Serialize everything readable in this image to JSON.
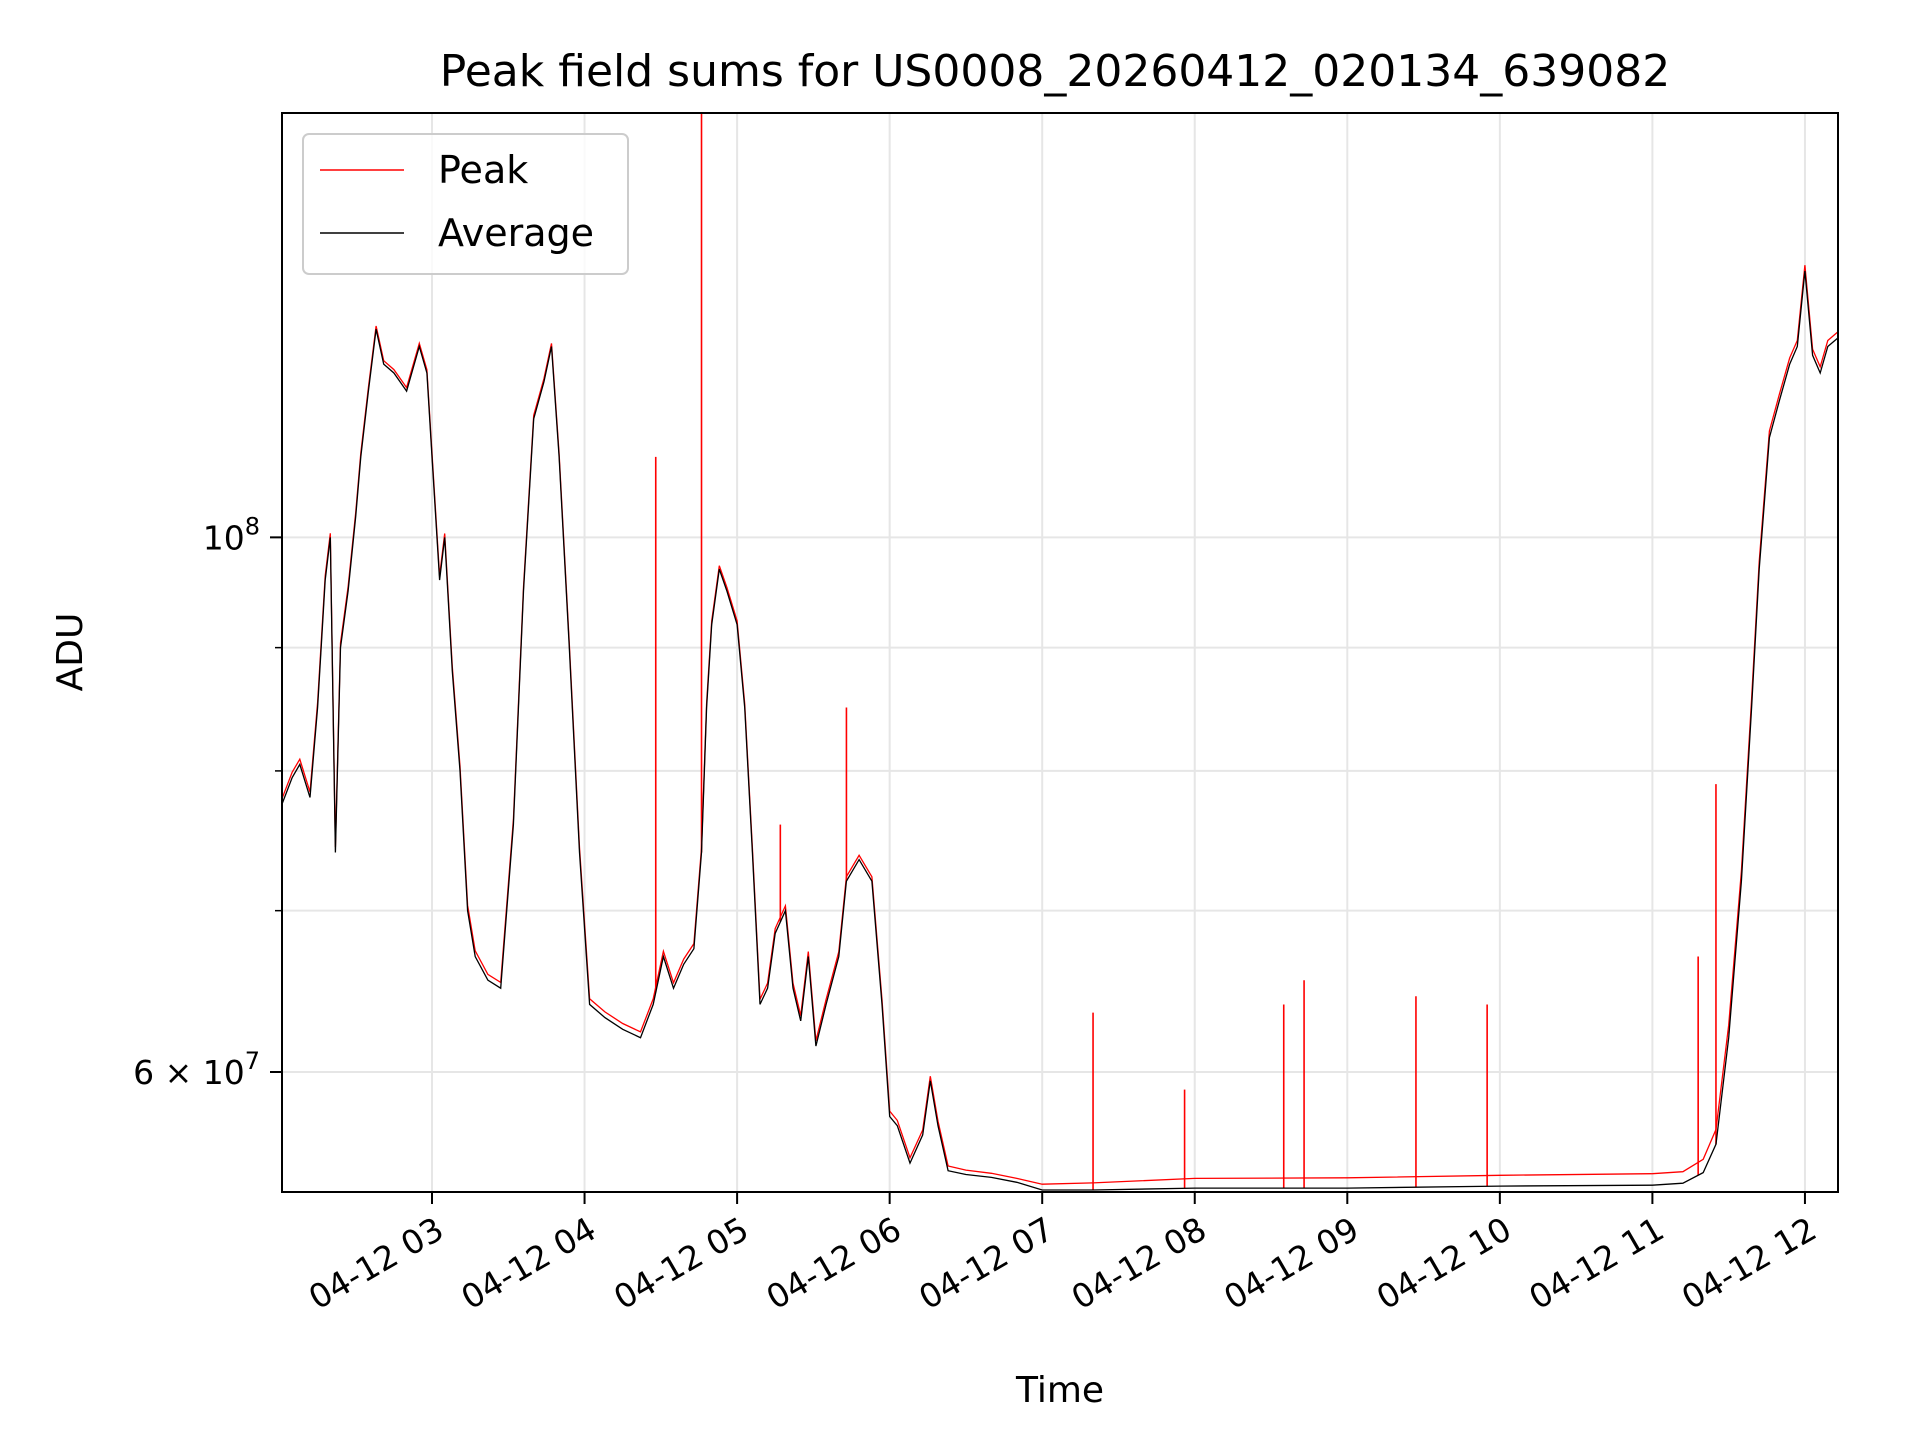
{
  "chart_data": {
    "type": "line",
    "title": "Peak field sums for US0008_20260412_020134_639082",
    "xlabel": "Time",
    "ylabel": "ADU",
    "y_scale": "log",
    "ylim": [
      53500000,
      150000000
    ],
    "xlim": [
      "2026-04-12 02:01",
      "2026-04-12 12:13"
    ],
    "grid": true,
    "legend": {
      "placement": "top-left"
    },
    "x_ticks": [
      {
        "t": "2026-04-12 03:00",
        "label": "04-12 03"
      },
      {
        "t": "2026-04-12 04:00",
        "label": "04-12 04"
      },
      {
        "t": "2026-04-12 05:00",
        "label": "04-12 05"
      },
      {
        "t": "2026-04-12 06:00",
        "label": "04-12 06"
      },
      {
        "t": "2026-04-12 07:00",
        "label": "04-12 07"
      },
      {
        "t": "2026-04-12 08:00",
        "label": "04-12 08"
      },
      {
        "t": "2026-04-12 09:00",
        "label": "04-12 09"
      },
      {
        "t": "2026-04-12 10:00",
        "label": "04-12 10"
      },
      {
        "t": "2026-04-12 11:00",
        "label": "04-12 11"
      },
      {
        "t": "2026-04-12 12:00",
        "label": "04-12 12"
      }
    ],
    "y_major_ticks": [
      {
        "value": 100000000,
        "base": "10",
        "exp": "8",
        "mant": ""
      },
      {
        "value": 60000000,
        "base": "10",
        "exp": "7",
        "mant": "6 × "
      }
    ],
    "y_minor_ticks": [
      70000000,
      80000000,
      90000000
    ],
    "series": [
      {
        "name": "Average",
        "color": "#000000",
        "points": [
          [
            "2026-04-12 02:01",
            77500000
          ],
          [
            "2026-04-12 02:05",
            79500000
          ],
          [
            "2026-04-12 02:08",
            80500000
          ],
          [
            "2026-04-12 02:12",
            78000000
          ],
          [
            "2026-04-12 02:15",
            85000000
          ],
          [
            "2026-04-12 02:18",
            96000000
          ],
          [
            "2026-04-12 02:20",
            100000000
          ],
          [
            "2026-04-12 02:22",
            74000000
          ],
          [
            "2026-04-12 02:24",
            90000000
          ],
          [
            "2026-04-12 02:27",
            95000000
          ],
          [
            "2026-04-12 02:30",
            102000000
          ],
          [
            "2026-04-12 02:32",
            108000000
          ],
          [
            "2026-04-12 02:35",
            115000000
          ],
          [
            "2026-04-12 02:38",
            122000000
          ],
          [
            "2026-04-12 02:41",
            118000000
          ],
          [
            "2026-04-12 02:45",
            117000000
          ],
          [
            "2026-04-12 02:50",
            115000000
          ],
          [
            "2026-04-12 02:55",
            120000000
          ],
          [
            "2026-04-12 02:58",
            117000000
          ],
          [
            "2026-04-12 03:00",
            108000000
          ],
          [
            "2026-04-12 03:03",
            96000000
          ],
          [
            "2026-04-12 03:05",
            100000000
          ],
          [
            "2026-04-12 03:08",
            88000000
          ],
          [
            "2026-04-12 03:11",
            80000000
          ],
          [
            "2026-04-12 03:14",
            70000000
          ],
          [
            "2026-04-12 03:17",
            67000000
          ],
          [
            "2026-04-12 03:22",
            65500000
          ],
          [
            "2026-04-12 03:27",
            65000000
          ],
          [
            "2026-04-12 03:32",
            76000000
          ],
          [
            "2026-04-12 03:36",
            95000000
          ],
          [
            "2026-04-12 03:40",
            112000000
          ],
          [
            "2026-04-12 03:44",
            116000000
          ],
          [
            "2026-04-12 03:47",
            120000000
          ],
          [
            "2026-04-12 03:50",
            108000000
          ],
          [
            "2026-04-12 03:54",
            90000000
          ],
          [
            "2026-04-12 03:58",
            74000000
          ],
          [
            "2026-04-12 04:02",
            64000000
          ],
          [
            "2026-04-12 04:08",
            63200000
          ],
          [
            "2026-04-12 04:15",
            62500000
          ],
          [
            "2026-04-12 04:22",
            62000000
          ],
          [
            "2026-04-12 04:27",
            64000000
          ],
          [
            "2026-04-12 04:31",
            67000000
          ],
          [
            "2026-04-12 04:35",
            65000000
          ],
          [
            "2026-04-12 04:39",
            66500000
          ],
          [
            "2026-04-12 04:43",
            67500000
          ],
          [
            "2026-04-12 04:46",
            74000000
          ],
          [
            "2026-04-12 04:48",
            85000000
          ],
          [
            "2026-04-12 04:50",
            92000000
          ],
          [
            "2026-04-12 04:53",
            97000000
          ],
          [
            "2026-04-12 04:56",
            95000000
          ],
          [
            "2026-04-12 05:00",
            92000000
          ],
          [
            "2026-04-12 05:03",
            85000000
          ],
          [
            "2026-04-12 05:06",
            74000000
          ],
          [
            "2026-04-12 05:09",
            64000000
          ],
          [
            "2026-04-12 05:12",
            65000000
          ],
          [
            "2026-04-12 05:15",
            68500000
          ],
          [
            "2026-04-12 05:19",
            70000000
          ],
          [
            "2026-04-12 05:22",
            65000000
          ],
          [
            "2026-04-12 05:25",
            63000000
          ],
          [
            "2026-04-12 05:28",
            67000000
          ],
          [
            "2026-04-12 05:31",
            61500000
          ],
          [
            "2026-04-12 05:35",
            64000000
          ],
          [
            "2026-04-12 05:40",
            67000000
          ],
          [
            "2026-04-12 05:43",
            72000000
          ],
          [
            "2026-04-12 05:48",
            73500000
          ],
          [
            "2026-04-12 05:53",
            72000000
          ],
          [
            "2026-04-12 05:57",
            64000000
          ],
          [
            "2026-04-12 06:00",
            57500000
          ],
          [
            "2026-04-12 06:03",
            57000000
          ],
          [
            "2026-04-12 06:08",
            55000000
          ],
          [
            "2026-04-12 06:13",
            56500000
          ],
          [
            "2026-04-12 06:16",
            59500000
          ],
          [
            "2026-04-12 06:19",
            57000000
          ],
          [
            "2026-04-12 06:23",
            54600000
          ],
          [
            "2026-04-12 06:30",
            54400000
          ],
          [
            "2026-04-12 06:40",
            54250000
          ],
          [
            "2026-04-12 06:50",
            54000000
          ],
          [
            "2026-04-12 07:00",
            53600000
          ],
          [
            "2026-04-12 07:20",
            53600000
          ],
          [
            "2026-04-12 08:00",
            53700000
          ],
          [
            "2026-04-12 09:00",
            53700000
          ],
          [
            "2026-04-12 10:00",
            53800000
          ],
          [
            "2026-04-12 11:00",
            53850000
          ],
          [
            "2026-04-12 11:12",
            53950000
          ],
          [
            "2026-04-12 11:20",
            54500000
          ],
          [
            "2026-04-12 11:25",
            56000000
          ],
          [
            "2026-04-12 11:30",
            62000000
          ],
          [
            "2026-04-12 11:35",
            72000000
          ],
          [
            "2026-04-12 11:39",
            85000000
          ],
          [
            "2026-04-12 11:42",
            97000000
          ],
          [
            "2026-04-12 11:46",
            110000000
          ],
          [
            "2026-04-12 11:50",
            114000000
          ],
          [
            "2026-04-12 11:54",
            118000000
          ],
          [
            "2026-04-12 11:57",
            120000000
          ],
          [
            "2026-04-12 12:00",
            129000000
          ],
          [
            "2026-04-12 12:03",
            119000000
          ],
          [
            "2026-04-12 12:06",
            117000000
          ],
          [
            "2026-04-12 12:09",
            120000000
          ],
          [
            "2026-04-12 12:13",
            121000000
          ]
        ]
      },
      {
        "name": "Peak",
        "color": "#ff0000",
        "offset_points": [
          [
            "2026-04-12 02:01",
            400000
          ],
          [
            "2026-04-12 05:59",
            300000
          ],
          [
            "2026-04-12 06:20",
            250000
          ],
          [
            "2026-04-12 06:50",
            200000
          ],
          [
            "2026-04-12 07:00",
            300000
          ],
          [
            "2026-04-12 08:00",
            500000
          ],
          [
            "2026-04-12 11:15",
            600000
          ],
          [
            "2026-04-12 11:25",
            800000
          ],
          [
            "2026-04-12 11:35",
            700000
          ],
          [
            "2026-04-12 12:13",
            700000
          ]
        ],
        "spikes": [
          [
            "2026-04-12 04:28",
            108000000
          ],
          [
            "2026-04-12 04:46",
            150000000
          ],
          [
            "2026-04-12 05:17",
            76000000
          ],
          [
            "2026-04-12 05:43",
            85000000
          ],
          [
            "2026-04-12 07:20",
            63500000
          ],
          [
            "2026-04-12 07:56",
            59000000
          ],
          [
            "2026-04-12 08:35",
            64000000
          ],
          [
            "2026-04-12 08:43",
            65500000
          ],
          [
            "2026-04-12 09:27",
            64500000
          ],
          [
            "2026-04-12 09:55",
            64000000
          ],
          [
            "2026-04-12 11:18",
            67000000
          ],
          [
            "2026-04-12 11:25",
            79000000
          ]
        ]
      }
    ]
  }
}
